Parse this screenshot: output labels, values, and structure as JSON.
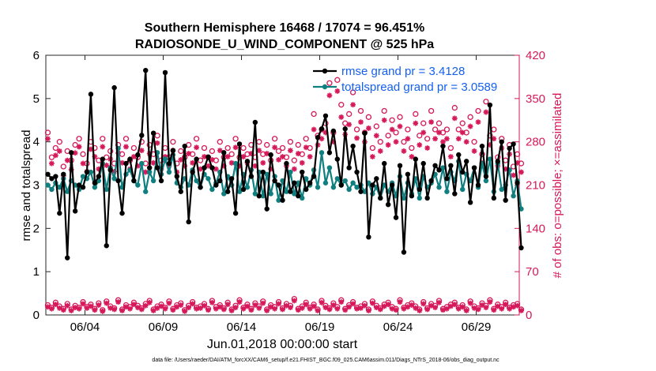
{
  "chart_data": {
    "type": "line",
    "title": "Southern Hemisphere 16468 / 17074 = 96.451%",
    "subtitle": "RADIOSONDE_U_WIND_COMPONENT @ 525 hPa",
    "xlabel": "Jun.01,2018 00:00:00 start",
    "ylabel_left": "rmse and totalspread",
    "ylabel_right": "# of obs: o=possible; ×=assimilated",
    "footer": "data file: /Users/raeder/DAI/ATM_forcXX/CAM6_setup/f.e21.FHIST_BGC.f09_025.CAM6assim.011/Diags_NTrS_2018-06/obs_diag_output.nc",
    "xlim": [
      1.0,
      31.25
    ],
    "ylim_left": [
      0,
      6
    ],
    "ylim_right": [
      0,
      420
    ],
    "xticks": [
      3.5,
      8.5,
      13.5,
      18.5,
      23.5,
      28.5
    ],
    "xtick_labels": [
      "06/04",
      "06/09",
      "06/14",
      "06/19",
      "06/24",
      "06/29"
    ],
    "yticks_left": [
      0,
      1,
      2,
      3,
      4,
      5,
      6
    ],
    "yticks_right": [
      0,
      70,
      140,
      210,
      280,
      350,
      420
    ],
    "time_step_days": 0.25,
    "colors": {
      "rmse": "#000000",
      "spread": "#0f7f80",
      "obs": "#d6195a",
      "legend_text": "#1560f0",
      "right_axis": "#d6195a"
    },
    "legend": [
      "rmse grand pr = 3.4128",
      "totalspread grand pr = 3.0589"
    ],
    "series": [
      {
        "name": "rmse",
        "values": [
          3.25,
          3.15,
          3.2,
          2.35,
          3.25,
          1.32,
          3.75,
          2.4,
          3.0,
          2.95,
          3.3,
          5.1,
          3.05,
          3.2,
          3.6,
          1.6,
          3.35,
          5.25,
          3.1,
          2.35,
          3.5,
          3.6,
          3.1,
          3.7,
          4.15,
          5.65,
          3.4,
          4.2,
          3.4,
          3.1,
          5.6,
          3.5,
          3.8,
          3.2,
          2.85,
          3.9,
          2.15,
          3.3,
          3.6,
          2.95,
          3.4,
          3.65,
          3.4,
          3.0,
          3.1,
          3.75,
          2.85,
          3.15,
          2.35,
          3.95,
          2.9,
          3.55,
          3.2,
          4.45,
          2.75,
          3.3,
          2.45,
          3.7,
          3.1,
          3.0,
          2.65,
          3.5,
          2.85,
          3.05,
          2.75,
          3.3,
          2.9,
          3.05,
          3.2,
          4.1,
          4.3,
          4.6,
          3.75,
          4.25,
          3.6,
          3.0,
          4.3,
          3.4,
          3.9,
          3.3,
          2.85,
          4.2,
          1.8,
          3.0,
          3.15,
          2.7,
          3.5,
          2.55,
          3.0,
          2.25,
          3.45,
          1.45,
          3.25,
          2.75,
          3.6,
          2.9,
          3.5,
          2.7,
          3.1,
          3.45,
          3.35,
          3.9,
          3.15,
          3.45,
          2.8,
          3.7,
          3.3,
          3.55,
          2.6,
          3.4,
          3.0,
          3.9,
          3.2,
          4.85,
          2.7,
          3.55,
          4.0,
          2.65,
          3.85,
          3.95,
          3.05,
          1.55
        ]
      },
      {
        "name": "totalspread",
        "values": [
          3.0,
          2.9,
          3.05,
          2.95,
          3.15,
          2.85,
          3.1,
          3.0,
          2.9,
          3.2,
          3.15,
          3.3,
          2.95,
          3.1,
          3.5,
          2.9,
          3.4,
          3.15,
          3.85,
          2.95,
          3.25,
          3.35,
          3.1,
          3.0,
          3.5,
          2.85,
          3.3,
          3.1,
          3.75,
          3.25,
          3.6,
          3.3,
          3.7,
          3.05,
          2.95,
          3.15,
          3.0,
          3.35,
          3.1,
          2.95,
          3.25,
          3.15,
          2.9,
          3.05,
          3.3,
          2.8,
          3.2,
          3.0,
          3.5,
          2.85,
          3.25,
          2.95,
          3.35,
          2.8,
          3.3,
          2.75,
          3.25,
          2.8,
          3.2,
          2.65,
          3.1,
          2.85,
          3.3,
          2.8,
          3.05,
          2.7,
          3.15,
          3.0,
          3.35,
          2.95,
          3.75,
          3.05,
          3.4,
          2.95,
          3.15,
          3.0,
          3.1,
          2.9,
          3.05,
          2.95,
          3.0,
          2.85,
          3.05,
          2.8,
          2.95,
          2.7,
          3.0,
          2.85,
          3.05,
          2.75,
          3.2,
          2.7,
          3.05,
          2.8,
          3.15,
          2.7,
          3.2,
          2.95,
          3.05,
          3.25,
          2.95,
          3.4,
          2.85,
          3.3,
          3.1,
          3.55,
          2.9,
          3.25,
          3.1,
          3.4,
          2.95,
          3.5,
          3.1,
          3.6,
          2.85,
          3.5,
          2.9,
          3.0,
          3.35,
          2.75,
          3.1,
          2.45
        ]
      },
      {
        "name": "obs_possible",
        "values": [
          295,
          255,
          270,
          280,
          240,
          265,
          250,
          275,
          285,
          260,
          245,
          280,
          270,
          250,
          285,
          255,
          265,
          245,
          275,
          260,
          285,
          250,
          270,
          255,
          280,
          245,
          275,
          260,
          290,
          250,
          270,
          255,
          280,
          245,
          265,
          255,
          275,
          260,
          285,
          250,
          270,
          255,
          265,
          250,
          280,
          255,
          270,
          260,
          285,
          255,
          270,
          260,
          275,
          255,
          280,
          260,
          275,
          250,
          285,
          265,
          270,
          255,
          280,
          250,
          275,
          260,
          285,
          270,
          325,
          290,
          300,
          310,
          375,
          295,
          380,
          340,
          310,
          325,
          360,
          300,
          330,
          295,
          320,
          270,
          305,
          280,
          330,
          290,
          315,
          295,
          320,
          280,
          300,
          270,
          325,
          290,
          310,
          285,
          330,
          300,
          310,
          295,
          300,
          270,
          335,
          300,
          310,
          295,
          320,
          280,
          330,
          260,
          345,
          290,
          300,
          255,
          285,
          250,
          275,
          240,
          260,
          245
        ]
      },
      {
        "name": "obs_assimilated",
        "values": [
          285,
          245,
          258,
          265,
          225,
          250,
          235,
          262,
          272,
          245,
          232,
          268,
          256,
          236,
          272,
          242,
          252,
          232,
          262,
          246,
          272,
          236,
          256,
          241,
          266,
          231,
          261,
          246,
          278,
          236,
          256,
          241,
          266,
          231,
          251,
          241,
          261,
          246,
          271,
          236,
          256,
          241,
          251,
          236,
          266,
          241,
          256,
          246,
          271,
          241,
          256,
          246,
          261,
          241,
          266,
          246,
          261,
          236,
          271,
          251,
          256,
          241,
          266,
          236,
          261,
          246,
          271,
          256,
          300,
          275,
          285,
          295,
          355,
          280,
          362,
          320,
          292,
          308,
          340,
          286,
          312,
          280,
          302,
          256,
          290,
          265,
          315,
          275,
          300,
          280,
          305,
          265,
          285,
          256,
          310,
          275,
          295,
          270,
          312,
          285,
          295,
          280,
          285,
          256,
          318,
          285,
          295,
          280,
          305,
          265,
          312,
          246,
          328,
          275,
          285,
          241,
          270,
          236,
          260,
          226,
          246,
          231
        ]
      },
      {
        "name": "obs_possible_bottom",
        "values": [
          16,
          12,
          20,
          14,
          10,
          18,
          9,
          15,
          12,
          21,
          13,
          17,
          10,
          19,
          8,
          22,
          14,
          11,
          24,
          9,
          16,
          13,
          20,
          15,
          11,
          18,
          23,
          9,
          14,
          17,
          12,
          22,
          10,
          16,
          19,
          8,
          15,
          21,
          12,
          14,
          18,
          10,
          23,
          13,
          16,
          11,
          20,
          9,
          15,
          24,
          12,
          17,
          10,
          19,
          14,
          22,
          9,
          16,
          13,
          21,
          11,
          18,
          15,
          26,
          10,
          14,
          20,
          12,
          17,
          9,
          23,
          15,
          11,
          19,
          13,
          24,
          10,
          16,
          21,
          12,
          14,
          18,
          9,
          22,
          15,
          11,
          17,
          20,
          13,
          10,
          24,
          12,
          16,
          19,
          14,
          9,
          21,
          11,
          18,
          15,
          23,
          10,
          13,
          17,
          20,
          12,
          16,
          9,
          22,
          14,
          11,
          19,
          15,
          24,
          10,
          17,
          13,
          20,
          12,
          16,
          18,
          9
        ]
      },
      {
        "name": "obs_assimilated_bottom",
        "values": [
          13,
          10,
          17,
          11,
          8,
          15,
          7,
          12,
          10,
          18,
          11,
          14,
          8,
          16,
          6,
          19,
          11,
          9,
          21,
          7,
          13,
          10,
          17,
          12,
          9,
          15,
          20,
          7,
          11,
          14,
          10,
          19,
          8,
          13,
          16,
          6,
          12,
          18,
          10,
          11,
          15,
          8,
          20,
          10,
          13,
          9,
          17,
          7,
          12,
          21,
          10,
          14,
          8,
          16,
          11,
          19,
          7,
          13,
          10,
          18,
          9,
          15,
          12,
          23,
          8,
          11,
          17,
          10,
          14,
          7,
          20,
          12,
          9,
          16,
          10,
          21,
          8,
          13,
          18,
          10,
          11,
          15,
          7,
          19,
          12,
          9,
          14,
          17,
          10,
          8,
          21,
          10,
          13,
          16,
          11,
          7,
          18,
          9,
          15,
          12,
          20,
          8,
          10,
          14,
          17,
          10,
          13,
          7,
          19,
          11,
          9,
          16,
          12,
          21,
          8,
          14,
          10,
          17,
          10,
          13,
          15,
          7
        ]
      }
    ]
  }
}
